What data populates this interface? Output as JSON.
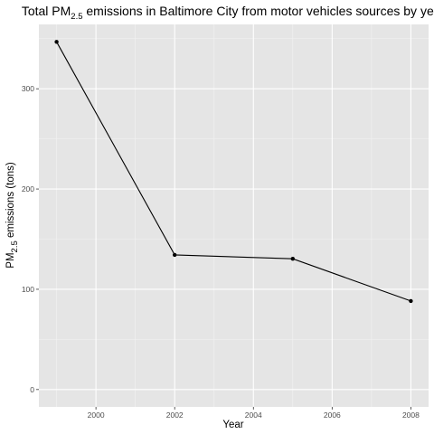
{
  "chart_data": {
    "type": "line",
    "title_parts": {
      "before": "Total PM",
      "subscript": "2.5",
      "after": " emissions in Baltimore City from motor vehicles sources by year"
    },
    "xlabel": "Year",
    "ylabel_parts": {
      "before": "PM",
      "subscript": "2.5",
      "after": " emissions (tons)"
    },
    "x": [
      1999,
      2002,
      2005,
      2008
    ],
    "values": [
      346.8,
      134.3,
      130.4,
      88.3
    ],
    "xlim": [
      1998.55,
      2008.45
    ],
    "ylim": [
      -17.3,
      364.2
    ],
    "x_ticks": [
      2000,
      2002,
      2004,
      2006,
      2008
    ],
    "x_tick_labels": [
      "2000",
      "2002",
      "2004",
      "2006",
      "2008"
    ],
    "x_minor_ticks": [
      1999,
      2001,
      2003,
      2005,
      2007
    ],
    "y_ticks": [
      0,
      100,
      200,
      300
    ],
    "y_tick_labels": [
      "0",
      "100",
      "200",
      "300"
    ],
    "y_minor_ticks": [
      50,
      150,
      250,
      350
    ],
    "grid": true,
    "legend": "none",
    "colors": {
      "panel": "#e5e5e5",
      "grid_major": "#ffffff",
      "grid_minor": "#f2f2f2",
      "line": "#000000",
      "point": "#000000"
    }
  }
}
